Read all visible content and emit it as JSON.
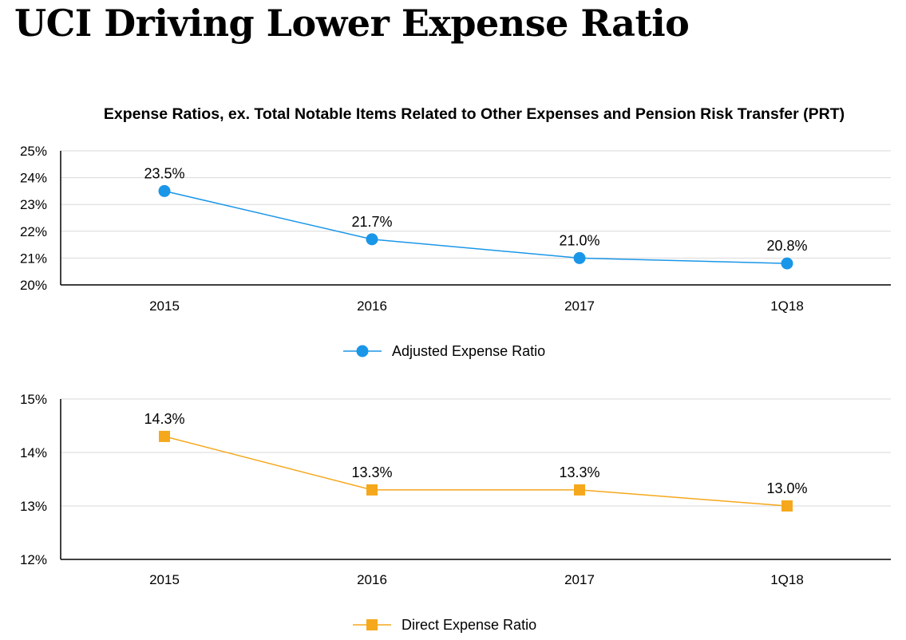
{
  "page": {
    "title": "UCI Driving Lower Expense Ratio",
    "subtitle": "Expense Ratios, ex. Total Notable Items Related to Other Expenses and Pension Risk Transfer (PRT)"
  },
  "colors": {
    "adjusted": "#1a96e8",
    "direct": "#f5a81c",
    "grid": "#d9d9d9",
    "axis": "#000000"
  },
  "chart_data": [
    {
      "type": "line",
      "categories": [
        "2015",
        "2016",
        "2017",
        "1Q18"
      ],
      "series": [
        {
          "name": "Adjusted Expense Ratio",
          "values": [
            23.5,
            21.7,
            21.0,
            20.8
          ],
          "marker": "circle"
        }
      ],
      "data_labels": [
        "23.5%",
        "21.7%",
        "21.0%",
        "20.8%"
      ],
      "ylim": [
        20,
        25
      ],
      "yticks": [
        "20%",
        "21%",
        "22%",
        "23%",
        "24%",
        "25%"
      ],
      "grid": true,
      "legend": "bottom"
    },
    {
      "type": "line",
      "categories": [
        "2015",
        "2016",
        "2017",
        "1Q18"
      ],
      "series": [
        {
          "name": "Direct Expense Ratio",
          "values": [
            14.3,
            13.3,
            13.3,
            13.0
          ],
          "marker": "square"
        }
      ],
      "data_labels": [
        "14.3%",
        "13.3%",
        "13.3%",
        "13.0%"
      ],
      "ylim": [
        12,
        15
      ],
      "yticks": [
        "12%",
        "13%",
        "14%",
        "15%"
      ],
      "grid": true,
      "legend": "bottom"
    }
  ]
}
